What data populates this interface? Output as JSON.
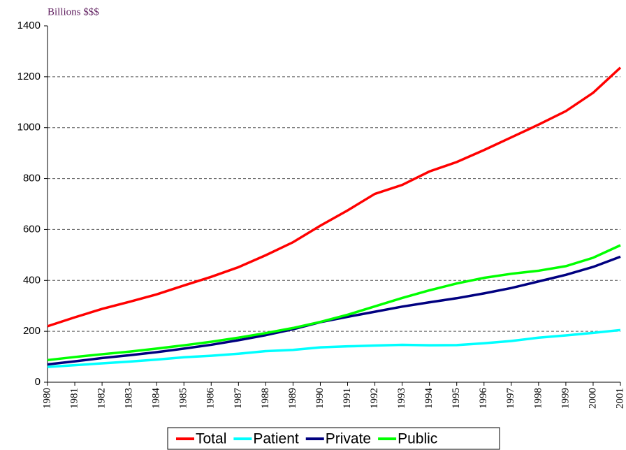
{
  "chart_data": {
    "type": "line",
    "y_label": "Billions $$$",
    "categories": [
      "1980",
      "1981",
      "1982",
      "1983",
      "1984",
      "1985",
      "1986",
      "1987",
      "1988",
      "1989",
      "1990",
      "1991",
      "1992",
      "1993",
      "1994",
      "1995",
      "1996",
      "1997",
      "1998",
      "1999",
      "2000",
      "2001"
    ],
    "series": [
      {
        "name": "Total",
        "color": "#ff0000",
        "values": [
          220,
          255,
          288,
          316,
          345,
          380,
          414,
          452,
          499,
          550,
          615,
          675,
          740,
          775,
          828,
          865,
          912,
          962,
          1012,
          1065,
          1137,
          1236
        ]
      },
      {
        "name": "Patient",
        "color": "#00ffff",
        "values": [
          60,
          67,
          74,
          81,
          89,
          98,
          104,
          112,
          122,
          127,
          137,
          141,
          144,
          147,
          145,
          146,
          153,
          162,
          175,
          184,
          194,
          205
        ]
      },
      {
        "name": "Private",
        "color": "#000080",
        "values": [
          70,
          82,
          95,
          106,
          118,
          132,
          147,
          165,
          185,
          208,
          236,
          257,
          277,
          297,
          314,
          330,
          349,
          370,
          396,
          422,
          453,
          493
        ]
      },
      {
        "name": "Public",
        "color": "#00ff00",
        "values": [
          87,
          99,
          110,
          120,
          132,
          145,
          159,
          175,
          193,
          213,
          237,
          265,
          298,
          331,
          361,
          388,
          410,
          426,
          438,
          456,
          489,
          538
        ]
      }
    ],
    "ylim": [
      0,
      1400
    ],
    "yticks": [
      0,
      200,
      400,
      600,
      800,
      1000,
      1200,
      1400
    ],
    "grid": true,
    "legend": "bottom"
  }
}
